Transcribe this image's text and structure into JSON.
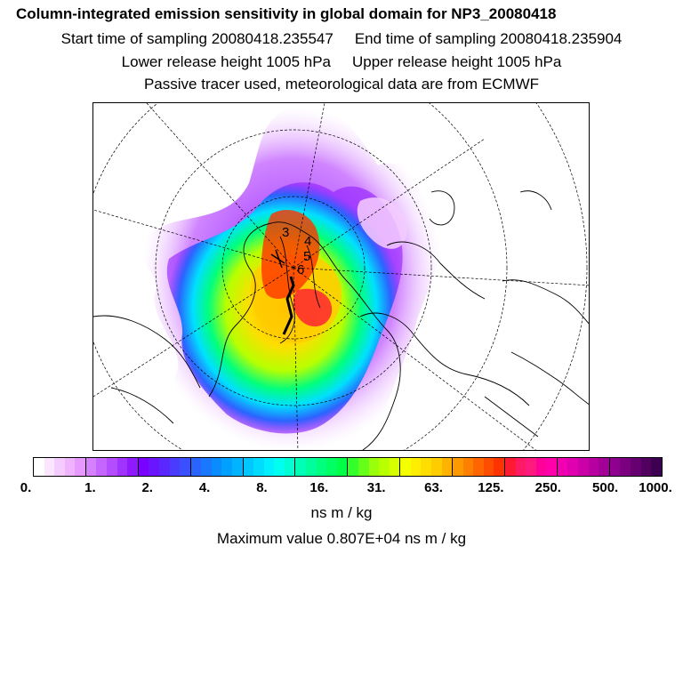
{
  "title": "Column-integrated emission sensitivity in global domain for NP3_20080418",
  "start_label": "Start time of sampling 20080418.235547",
  "end_label": "End time of sampling 20080418.235904",
  "lower_label": "Lower release height 1005 hPa",
  "upper_label": "Upper release height 1005 hPa",
  "tracer_label": "Passive tracer used, meteorological data are from ECMWF",
  "colorbar": {
    "ticks": [
      "0.",
      "1.",
      "2.",
      "4.",
      "8.",
      "16.",
      "31.",
      "63.",
      "125.",
      "250.",
      "500.",
      "1000."
    ],
    "colors": [
      "#ffffff",
      "#fbe6ff",
      "#f5ccff",
      "#efb3ff",
      "#e699ff",
      "#d580ff",
      "#c466ff",
      "#b34dff",
      "#a133ff",
      "#8f1aff",
      "#7a00ff",
      "#6a14ff",
      "#5a28ff",
      "#4a3cff",
      "#3a50ff",
      "#2a64ff",
      "#1a78ff",
      "#0a8cff",
      "#00a0ff",
      "#00b4ff",
      "#00c8ff",
      "#00dcff",
      "#00f0ff",
      "#00ffee",
      "#00ffd2",
      "#00ffb6",
      "#00ff9a",
      "#00ff7e",
      "#00ff62",
      "#00ff46",
      "#33ff2a",
      "#66ff1a",
      "#99ff0a",
      "#b8ff00",
      "#d6ff00",
      "#f4ff00",
      "#ffee00",
      "#ffdd00",
      "#ffcc00",
      "#ffb300",
      "#ff9900",
      "#ff8000",
      "#ff6600",
      "#ff4d00",
      "#ff3300",
      "#ff1a33",
      "#ff1a66",
      "#ff1a80",
      "#ff0099",
      "#ff00aa",
      "#f000b0",
      "#e000b0",
      "#cc00a8",
      "#b800a0",
      "#a30098",
      "#8f0090",
      "#7a0080",
      "#660070",
      "#520060",
      "#3d0050"
    ],
    "units": "ns m / kg"
  },
  "max_label": "Maximum value  0.807E+04 ns m / kg",
  "points": [
    "3",
    "4",
    "5",
    "6"
  ]
}
